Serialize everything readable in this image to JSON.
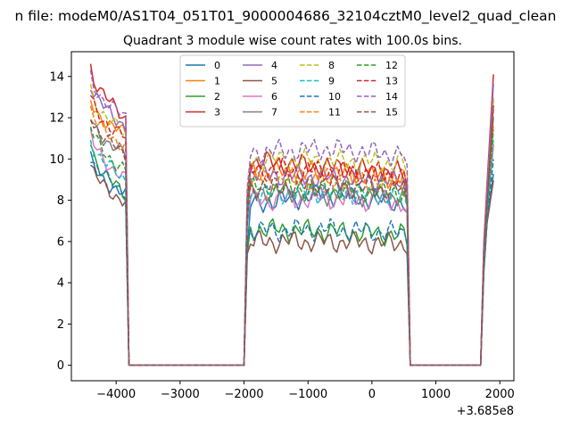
{
  "chart_data": {
    "type": "line",
    "suptitle": "n file: modeM0/AS1T04_051T01_9000004686_32104cztM0_level2_quad_clean",
    "title": "Quadrant 3 module wise count rates with 100.0s bins.",
    "xlabel": "",
    "ylabel": "",
    "x_offset_label": "+3.685e8",
    "xlim": [
      -4700,
      2220
    ],
    "ylim": [
      -0.75,
      15.2
    ],
    "xticks": [
      -4000,
      -3000,
      -2000,
      -1000,
      0,
      1000,
      2000
    ],
    "xtick_labels": [
      "−4000",
      "−3000",
      "−2000",
      "−1000",
      "0",
      "1000",
      "2000"
    ],
    "yticks": [
      0,
      2,
      4,
      6,
      8,
      10,
      12,
      14
    ],
    "ytick_labels": [
      "0",
      "2",
      "4",
      "6",
      "8",
      "10",
      "12",
      "14"
    ],
    "grid": false,
    "legend_position": "top-center",
    "series": [
      {
        "name": "0",
        "color": "#1f77b4",
        "dash": false,
        "levels": [
          10.0,
          8.4,
          8.5,
          8.3,
          8.2,
          5.6,
          7.8,
          8.3,
          7.9
        ]
      },
      {
        "name": "1",
        "color": "#ff7f0e",
        "dash": false,
        "levels": [
          12.8,
          11.5,
          11.3,
          11.0,
          11.2,
          7.6,
          9.4,
          9.3,
          9.1
        ]
      },
      {
        "name": "2",
        "color": "#2ca02c",
        "dash": false,
        "levels": [
          10.8,
          8.6,
          8.4,
          8.3,
          8.2,
          5.4,
          6.6,
          6.5,
          6.3
        ]
      },
      {
        "name": "3",
        "color": "#d62728",
        "dash": false,
        "levels": [
          14.5,
          13.2,
          12.8,
          12.5,
          12.0,
          8.1,
          9.9,
          9.6,
          9.3
        ]
      },
      {
        "name": "4",
        "color": "#9467bd",
        "dash": false,
        "levels": [
          13.7,
          12.6,
          12.2,
          11.8,
          11.6,
          8.0,
          9.3,
          9.1,
          8.9
        ]
      },
      {
        "name": "5",
        "color": "#8c564b",
        "dash": false,
        "levels": [
          9.7,
          8.0,
          7.5,
          7.8,
          7.9,
          5.4,
          6.0,
          6.0,
          5.9
        ]
      },
      {
        "name": "6",
        "color": "#e377c2",
        "dash": false,
        "levels": [
          11.2,
          10.0,
          9.6,
          9.3,
          9.0,
          6.8,
          8.0,
          8.1,
          7.9
        ]
      },
      {
        "name": "7",
        "color": "#7f7f7f",
        "dash": false,
        "levels": [
          12.0,
          10.8,
          10.5,
          10.3,
          10.2,
          7.2,
          8.5,
          8.3,
          8.2
        ]
      },
      {
        "name": "8",
        "color": "#bcbd22",
        "dash": true,
        "levels": [
          13.4,
          12.0,
          11.7,
          11.4,
          11.2,
          8.4,
          10.0,
          9.9,
          9.8
        ]
      },
      {
        "name": "9",
        "color": "#17becf",
        "dash": true,
        "levels": [
          11.0,
          9.8,
          9.5,
          9.2,
          9.0,
          6.8,
          8.3,
          8.4,
          8.2
        ]
      },
      {
        "name": "10",
        "color": "#1f77b4",
        "dash": true,
        "levels": [
          10.2,
          9.0,
          8.8,
          8.6,
          8.4,
          6.0,
          6.5,
          6.6,
          6.4
        ]
      },
      {
        "name": "11",
        "color": "#ff7f0e",
        "dash": true,
        "levels": [
          12.4,
          11.2,
          11.0,
          10.8,
          10.6,
          7.8,
          9.0,
          9.0,
          8.8
        ]
      },
      {
        "name": "12",
        "color": "#2ca02c",
        "dash": true,
        "levels": [
          11.6,
          10.2,
          9.9,
          9.6,
          9.4,
          7.5,
          8.6,
          8.5,
          8.4
        ]
      },
      {
        "name": "13",
        "color": "#d62728",
        "dash": true,
        "levels": [
          13.0,
          11.8,
          11.6,
          11.2,
          11.0,
          8.0,
          9.5,
          9.4,
          9.2
        ]
      },
      {
        "name": "14",
        "color": "#9467bd",
        "dash": true,
        "levels": [
          14.0,
          12.9,
          12.6,
          12.3,
          12.0,
          8.6,
          10.3,
          10.5,
          10.2
        ]
      },
      {
        "name": "15",
        "color": "#8c564b",
        "dash": true,
        "levels": [
          12.2,
          11.0,
          10.7,
          10.4,
          10.2,
          7.0,
          8.6,
          8.7,
          8.5
        ]
      }
    ]
  }
}
